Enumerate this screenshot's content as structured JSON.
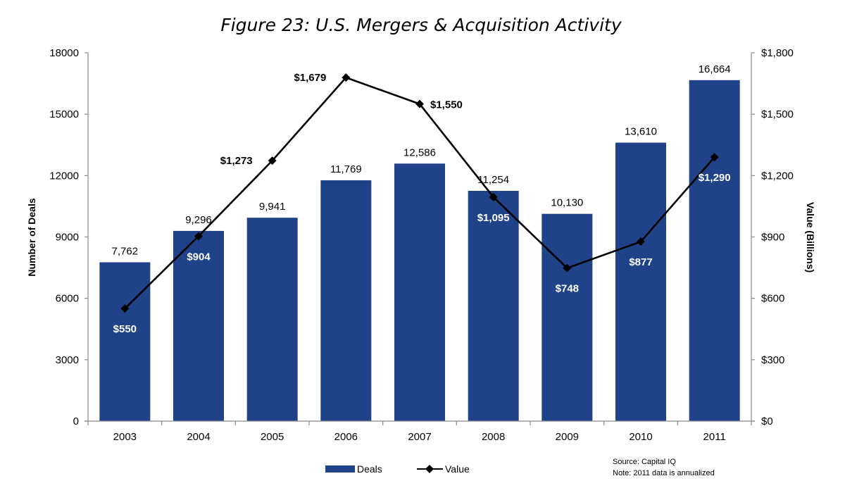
{
  "chart_data": {
    "type": "bar",
    "title": "Figure 23: U.S. Mergers & Acquisition Activity",
    "categories": [
      "2003",
      "2004",
      "2005",
      "2006",
      "2007",
      "2008",
      "2009",
      "2010",
      "2011"
    ],
    "series": [
      {
        "name": "Deals",
        "type": "bar",
        "axis": "left",
        "color": "#1F4289",
        "values": [
          7762,
          9296,
          9941,
          11769,
          12586,
          11254,
          10130,
          13610,
          16664
        ],
        "labels": [
          "7,762",
          "9,296",
          "9,941",
          "11,769",
          "12,586",
          "11,254",
          "10,130",
          "13,610",
          "16,664"
        ]
      },
      {
        "name": "Value",
        "type": "line",
        "axis": "right",
        "color": "#000000",
        "marker": "diamond",
        "values": [
          550,
          904,
          1273,
          1679,
          1550,
          1095,
          748,
          877,
          1290
        ],
        "labels": [
          "$550",
          "$904",
          "$1,273",
          "$1,679",
          "$1,550",
          "$1,095",
          "$748",
          "$877",
          "$1,290"
        ],
        "label_positions": [
          "below",
          "below",
          "left",
          "left",
          "right",
          "below",
          "below",
          "below",
          "below"
        ]
      }
    ],
    "ylabel": "Number of Deals",
    "ylim": [
      0,
      18000
    ],
    "yticks": [
      0,
      3000,
      6000,
      9000,
      12000,
      15000,
      18000
    ],
    "ytick_labels": [
      "0",
      "3000",
      "6000",
      "9000",
      "12000",
      "15000",
      "18000"
    ],
    "y2label": "Value (Billions)",
    "y2lim": [
      0,
      1800
    ],
    "y2ticks": [
      0,
      300,
      600,
      900,
      1200,
      1500,
      1800
    ],
    "y2tick_labels": [
      "$0",
      "$300",
      "$600",
      "$900",
      "$1,200",
      "$1,500",
      "$1,800"
    ],
    "grid": false,
    "legend": {
      "placement": "bottom-center",
      "entries": [
        "Deals",
        "Value"
      ]
    },
    "notes": [
      "Source: Capital IQ",
      "Note: 2011 data is annualized"
    ]
  }
}
